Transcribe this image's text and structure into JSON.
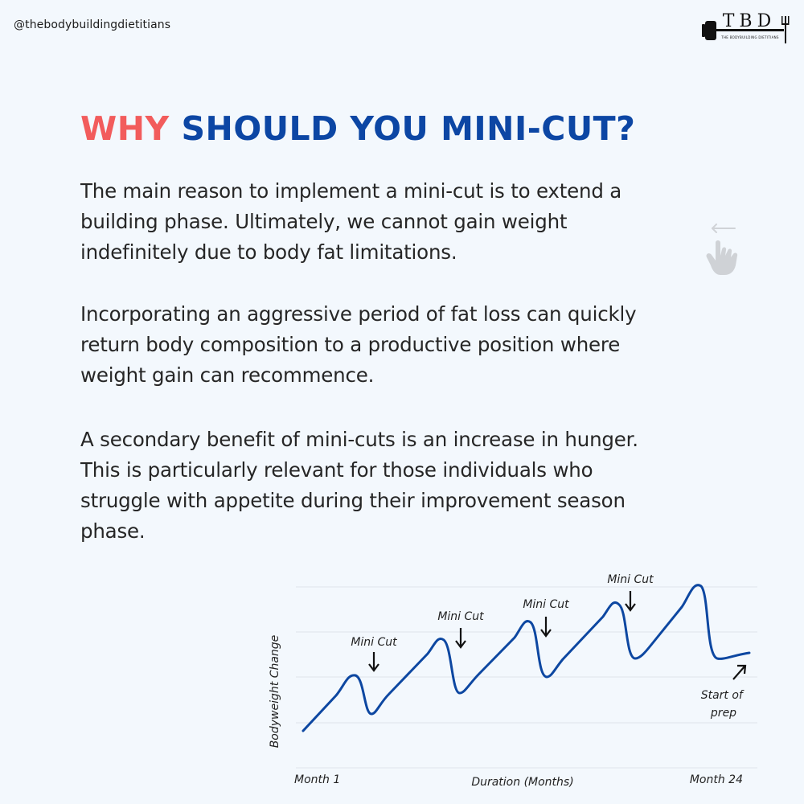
{
  "header": {
    "handle": "@thebodybuildingdietitians",
    "logo_text": "TBD",
    "logo_subtext": "THE BODYBUILDING DIETITIANS"
  },
  "title": {
    "part1": "WHY",
    "part2": "SHOULD YOU MINI-CUT?"
  },
  "paragraphs": [
    "The main reason to implement a mini-cut is to extend a building phase. Ultimately, we cannot gain weight indefinitely due to body fat limitations.",
    "Incorporating an aggressive period of fat loss can quickly return body composition to a productive position where weight gain can recommence.",
    "A secondary benefit of mini-cuts is an increase in hunger. This is particularly relevant for those individuals who struggle with appetite during their improvement season phase."
  ],
  "icons": {
    "swipe": "swipe-left-hand-icon",
    "logo": "dumbbell-logo-icon"
  },
  "colors": {
    "accent_red": "#f25c5c",
    "accent_blue": "#0c46a4",
    "line": "#0d47a1",
    "background": "#f3f8fd"
  },
  "chart_data": {
    "type": "line",
    "xlabel": "Duration (Months)",
    "ylabel": "Bodyweight Change",
    "x_start_label": "Month 1",
    "x_end_label": "Month 24",
    "grid": true,
    "annotations": [
      {
        "label": "Mini Cut"
      },
      {
        "label": "Mini Cut"
      },
      {
        "label": "Mini Cut"
      },
      {
        "label": "Mini Cut"
      },
      {
        "label": "Start of prep"
      }
    ]
  }
}
